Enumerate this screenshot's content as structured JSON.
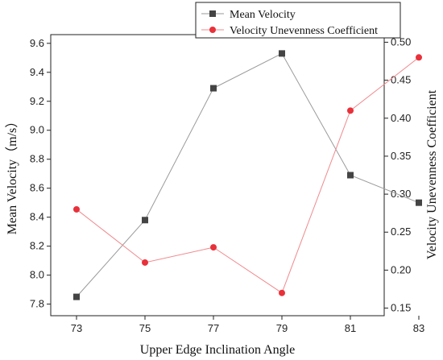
{
  "chart_data": {
    "type": "line",
    "xlabel": "Upper Edge Inclination Angle",
    "x": [
      73,
      75,
      77,
      79,
      81,
      83
    ],
    "x_ticks": [
      "73",
      "75",
      "77",
      "79",
      "81",
      "83"
    ],
    "y_left": {
      "label": "Mean Velocity（m/s）",
      "lim": [
        7.72,
        9.66
      ],
      "ticks": [
        7.8,
        8.0,
        8.2,
        8.4,
        8.6,
        8.8,
        9.0,
        9.2,
        9.4,
        9.6
      ],
      "tick_labels": [
        "7.8",
        "8.0",
        "8.2",
        "8.4",
        "8.6",
        "8.8",
        "9.0",
        "9.2",
        "9.4",
        "9.6"
      ]
    },
    "y_right": {
      "label": "Velocity  Unevenness Coefficient",
      "lim": [
        0.14,
        0.51
      ],
      "ticks": [
        0.15,
        0.2,
        0.25,
        0.3,
        0.35,
        0.4,
        0.45,
        0.5
      ],
      "tick_labels": [
        "0.15",
        "0.20",
        "0.25",
        "0.30",
        "0.35",
        "0.40",
        "0.45",
        "0.50"
      ]
    },
    "series": [
      {
        "name": "Mean Velocity",
        "axis": "left",
        "marker": "square",
        "color": "#444444",
        "line_color": "#9a9a9a",
        "values": [
          7.85,
          8.38,
          9.29,
          9.53,
          8.69,
          8.5
        ]
      },
      {
        "name": "Velocity Unevenness Coefficient",
        "axis": "right",
        "marker": "circle",
        "color": "#e8313a",
        "line_color": "#f08a8e",
        "values": [
          0.28,
          0.21,
          0.23,
          0.17,
          0.41,
          0.48
        ]
      }
    ],
    "legend_position": "top-right",
    "grid": false
  }
}
